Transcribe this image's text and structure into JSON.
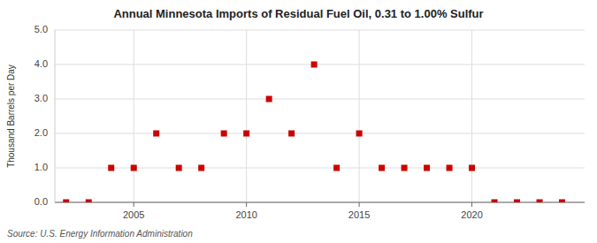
{
  "chart_data": {
    "type": "scatter",
    "title": "Annual Minnesota Imports of Residual Fuel Oil, 0.31 to 1.00% Sulfur",
    "y_label": "Thousand Barrels per Day",
    "annotation": "Source: U.S. Energy Information Administration",
    "x": [
      2002,
      2003,
      2004,
      2005,
      2006,
      2007,
      2008,
      2009,
      2010,
      2011,
      2012,
      2013,
      2014,
      2015,
      2016,
      2017,
      2018,
      2019,
      2020,
      2021,
      2022,
      2023,
      2024
    ],
    "values": [
      0.0,
      0.0,
      1.0,
      1.0,
      2.0,
      1.0,
      1.0,
      2.0,
      2.0,
      3.0,
      2.0,
      4.0,
      1.0,
      2.0,
      1.0,
      1.0,
      1.0,
      1.0,
      1.0,
      0.0,
      0.0,
      0.0,
      0.0
    ],
    "color": "#cc0000",
    "marker": "square",
    "xlim": [
      2001.5,
      2025.0
    ],
    "xticks": [
      2005,
      2010,
      2015,
      2020
    ],
    "ylim": [
      0.0,
      5.0
    ],
    "yticks": [
      {
        "value": 0.0,
        "label": "0.0"
      },
      {
        "value": 1.0,
        "label": "1.0"
      },
      {
        "value": 2.0,
        "label": "2.0"
      },
      {
        "value": 3.0,
        "label": "3.0"
      },
      {
        "value": 4.0,
        "label": "4.0"
      },
      {
        "value": 5.0,
        "label": "5.0"
      }
    ],
    "grid": true
  }
}
